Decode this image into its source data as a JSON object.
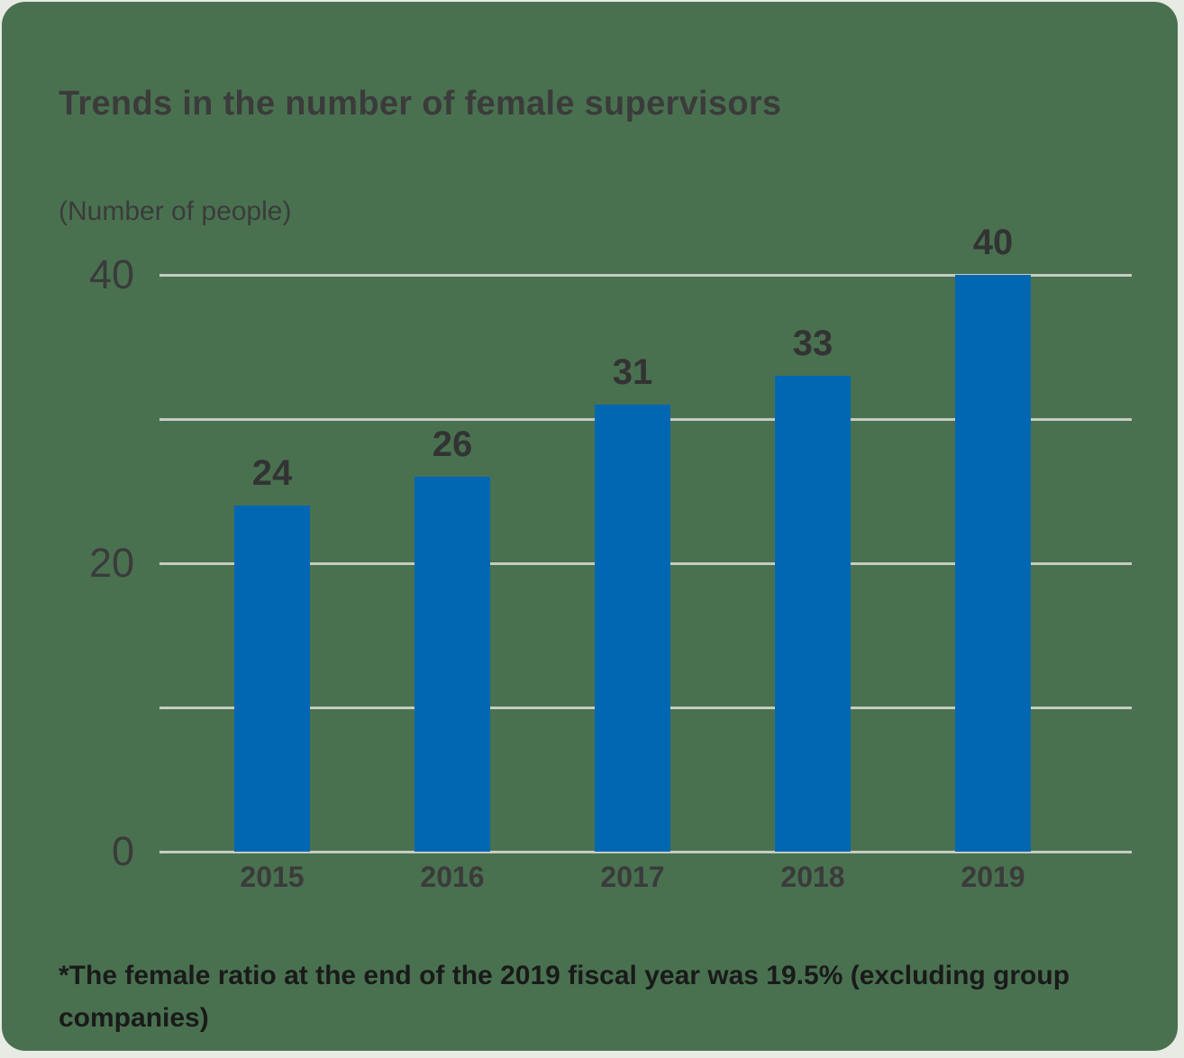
{
  "page": {
    "background": "#e8eae4"
  },
  "card": {
    "background": "#497150"
  },
  "chart_data": {
    "type": "bar",
    "title": "Trends in the number of female supervisors",
    "unit_label": "(Number of people)",
    "categories": [
      "2015",
      "2016",
      "2017",
      "2018",
      "2019"
    ],
    "values": [
      24,
      26,
      31,
      33,
      40
    ],
    "xlabel": "",
    "ylabel": "Number of people",
    "ylim": [
      0,
      40
    ],
    "gridline_step": 10,
    "ytick_values": [
      0,
      20,
      40
    ],
    "grid": "horizontal",
    "legend": "none",
    "bar_color": "#0167b3",
    "gridline_color": "#c6ccc2",
    "text_color": "#3b3b3b",
    "value_label_color": "#333333"
  },
  "footnote": {
    "text": "*The female ratio at the end of the 2019 fiscal year was 19.5% (excluding group companies)",
    "color": "#1a1a1a"
  }
}
